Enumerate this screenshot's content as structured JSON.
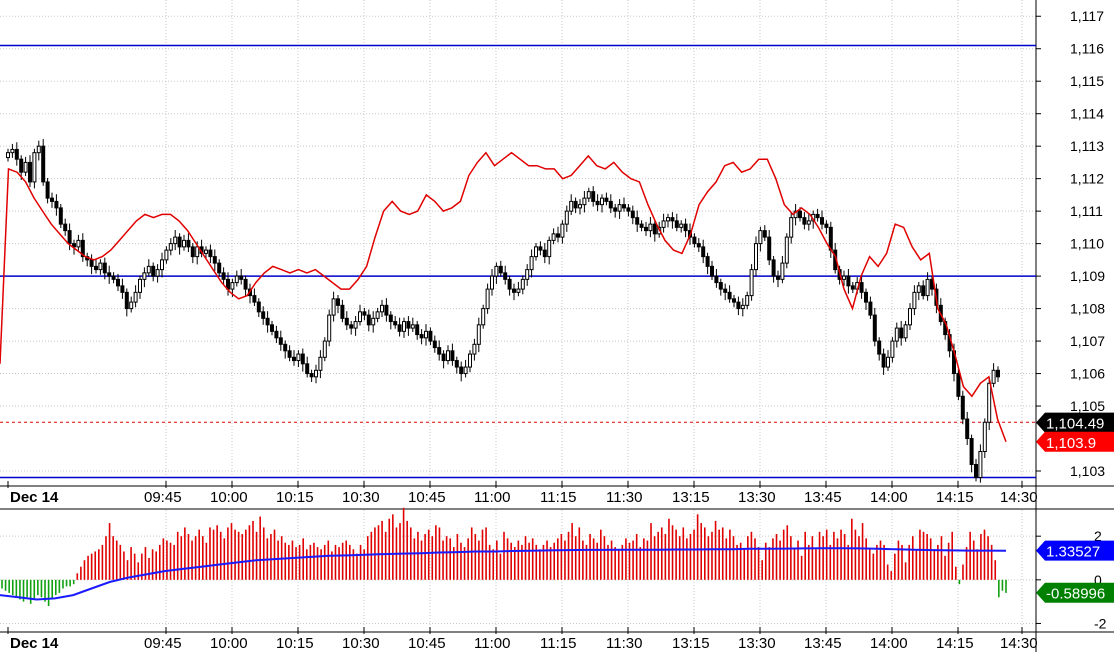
{
  "chart_data": [
    {
      "type": "candlestick",
      "title": "",
      "x_labels": {
        "date": "Dec 14",
        "times": [
          "09:45",
          "10:00",
          "10:15",
          "10:30",
          "10:45",
          "11:00",
          "11:15",
          "11:30",
          "13:15",
          "13:30",
          "13:45",
          "14:00",
          "14:15",
          "14:30"
        ]
      },
      "y_ticks": [
        "1,117",
        "1,116",
        "1,115",
        "1,114",
        "1,113",
        "1,112",
        "1,111",
        "1,110",
        "1,109",
        "1,108",
        "1,107",
        "1,106",
        "1,105",
        "1,103"
      ],
      "ylim": [
        1102.6,
        1117.5
      ],
      "horizontal_lines": [
        1116.1,
        1109.0,
        1102.8
      ],
      "last_price_line": 1104.5,
      "price_badges": [
        {
          "label": "1,104.49",
          "value": 1104.49,
          "color": "#000000"
        },
        {
          "label": "1,103.9",
          "value": 1103.9,
          "color": "#ff0000"
        }
      ],
      "series": [
        {
          "type": "ohlc-close",
          "close": [
            1112.8,
            1112.9,
            1112.6,
            1112.2,
            1112.5,
            1111.9,
            1112.8,
            1113.0,
            1111.9,
            1111.4,
            1111.3,
            1111.1,
            1110.6,
            1110.4,
            1110.0,
            1109.9,
            1110.1,
            1109.6,
            1109.5,
            1109.3,
            1109.2,
            1109.4,
            1109.1,
            1109.0,
            1108.9,
            1108.7,
            1108.5,
            1108.0,
            1108.2,
            1108.5,
            1108.9,
            1109.1,
            1109.3,
            1109.0,
            1109.2,
            1109.5,
            1109.8,
            1110.0,
            1110.2,
            1109.9,
            1110.1,
            1109.9,
            1109.6,
            1109.9,
            1109.7,
            1109.8,
            1109.6,
            1109.4,
            1109.1,
            1108.9,
            1108.6,
            1108.8,
            1109.0,
            1108.9,
            1108.6,
            1108.4,
            1108.2,
            1107.9,
            1107.7,
            1107.5,
            1107.3,
            1107.1,
            1106.9,
            1106.7,
            1106.5,
            1106.4,
            1106.6,
            1106.3,
            1106.0,
            1105.9,
            1106.1,
            1106.5,
            1107.0,
            1107.8,
            1108.3,
            1108.1,
            1107.7,
            1107.5,
            1107.4,
            1107.6,
            1107.9,
            1107.8,
            1107.5,
            1107.7,
            1107.9,
            1108.1,
            1107.8,
            1107.6,
            1107.5,
            1107.3,
            1107.6,
            1107.4,
            1107.5,
            1107.2,
            1107.1,
            1107.3,
            1107.0,
            1106.8,
            1106.6,
            1106.4,
            1106.7,
            1106.4,
            1106.2,
            1106.0,
            1106.2,
            1106.6,
            1106.9,
            1107.5,
            1108.0,
            1108.6,
            1109.0,
            1109.3,
            1109.1,
            1108.9,
            1108.6,
            1108.5,
            1108.6,
            1108.9,
            1109.2,
            1109.6,
            1109.9,
            1109.8,
            1109.6,
            1110.1,
            1110.3,
            1110.2,
            1110.6,
            1111.0,
            1111.3,
            1111.1,
            1111.2,
            1111.4,
            1111.6,
            1111.3,
            1111.2,
            1111.4,
            1111.3,
            1111.1,
            1111.0,
            1111.2,
            1111.1,
            1111.0,
            1110.8,
            1110.6,
            1110.5,
            1110.4,
            1110.6,
            1110.3,
            1110.5,
            1110.7,
            1110.8,
            1110.7,
            1110.5,
            1110.6,
            1110.4,
            1110.2,
            1110.0,
            1109.9,
            1109.6,
            1109.3,
            1109.0,
            1108.8,
            1108.6,
            1108.5,
            1108.3,
            1108.2,
            1108.0,
            1108.1,
            1108.4,
            1109.2,
            1110.0,
            1110.4,
            1110.2,
            1109.5,
            1109.0,
            1108.9,
            1109.4,
            1110.2,
            1110.8,
            1111.0,
            1110.8,
            1110.6,
            1110.7,
            1110.9,
            1110.8,
            1110.6,
            1110.5,
            1109.8,
            1109.2,
            1108.9,
            1109.0,
            1108.7,
            1108.6,
            1108.8,
            1108.5,
            1108.2,
            1107.8,
            1107.0,
            1106.6,
            1106.2,
            1106.5,
            1107.0,
            1107.4,
            1107.1,
            1107.5,
            1108.0,
            1108.5,
            1108.7,
            1108.4,
            1108.9,
            1108.6,
            1108.1,
            1107.6,
            1107.2,
            1106.7,
            1106.0,
            1105.3,
            1104.6,
            1104.0,
            1103.2,
            1102.8,
            1103.6,
            1104.5,
            1105.7,
            1106.1,
            1105.9
          ],
          "color_up": "#ffffff",
          "color_down": "#000000"
        },
        {
          "type": "line",
          "color": "#e00000",
          "values": [
            1106.3,
            1112.3,
            1112.2,
            1111.9,
            1111.4,
            1111.0,
            1110.6,
            1110.3,
            1110.0,
            1109.8,
            1109.6,
            1109.5,
            1109.6,
            1109.8,
            1110.1,
            1110.4,
            1110.7,
            1110.9,
            1110.8,
            1110.9,
            1110.9,
            1110.7,
            1110.4,
            1110.0,
            1109.6,
            1109.2,
            1108.8,
            1108.5,
            1108.3,
            1108.4,
            1108.8,
            1109.1,
            1109.3,
            1109.2,
            1109.1,
            1109.2,
            1109.1,
            1109.2,
            1109.0,
            1108.8,
            1108.6,
            1108.6,
            1108.9,
            1109.3,
            1110.2,
            1111.0,
            1111.3,
            1111.0,
            1110.9,
            1111.0,
            1111.5,
            1111.3,
            1111.0,
            1111.1,
            1111.3,
            1112.1,
            1112.5,
            1112.8,
            1112.4,
            1112.6,
            1112.8,
            1112.6,
            1112.4,
            1112.4,
            1112.3,
            1112.3,
            1112.0,
            1112.1,
            1112.4,
            1112.7,
            1112.4,
            1112.3,
            1112.5,
            1112.2,
            1112.0,
            1111.9,
            1111.2,
            1110.6,
            1110.1,
            1109.8,
            1109.7,
            1110.3,
            1111.2,
            1111.6,
            1111.9,
            1112.4,
            1112.5,
            1112.2,
            1112.3,
            1112.6,
            1112.6,
            1112.0,
            1111.2,
            1110.9,
            1111.1,
            1110.9,
            1110.5,
            1110.0,
            1109.6,
            1108.6,
            1108.0,
            1109.0,
            1109.6,
            1109.3,
            1109.7,
            1110.6,
            1110.5,
            1109.9,
            1109.5,
            1109.7,
            1108.0,
            1107.5,
            1106.6,
            1105.6,
            1105.3,
            1105.7,
            1105.9,
            1104.6,
            1103.9
          ],
          "x_count": 119
        }
      ]
    },
    {
      "type": "bar",
      "title": "",
      "y_ticks": [
        "2",
        "0",
        "-2"
      ],
      "ylim": [
        -2.3,
        3.2
      ],
      "value_badges": [
        {
          "label": "1.33527",
          "value": 1.33527,
          "color": "#0000ff"
        },
        {
          "label": "-0.58996",
          "value": -0.58996,
          "color": "#008000"
        }
      ],
      "x_labels": {
        "date": "Dec 14",
        "times": [
          "09:45",
          "10:00",
          "10:15",
          "10:30",
          "10:45",
          "11:00",
          "11:15",
          "11:30",
          "13:15",
          "13:30",
          "13:45",
          "14:00",
          "14:15",
          "14:30"
        ]
      },
      "series": [
        {
          "name": "",
          "type": "bar",
          "values": [
            -0.4,
            -0.5,
            -0.6,
            -0.7,
            -0.8,
            -0.9,
            -1.0,
            -0.8,
            -1.1,
            -0.9,
            -0.7,
            -0.8,
            -1.0,
            -1.2,
            -0.9,
            -0.7,
            -0.6,
            -0.4,
            -0.3,
            -0.3,
            -0.2,
            0.3,
            0.6,
            0.9,
            1.1,
            1.2,
            1.3,
            1.4,
            1.6,
            2.0,
            2.6,
            2.0,
            1.8,
            1.6,
            1.3,
            0.9,
            1.5,
            1.2,
            0.8,
            1.2,
            1.5,
            1.0,
            1.4,
            1.3,
            1.6,
            1.9,
            1.8,
            1.7,
            1.6,
            2.2,
            2.0,
            2.4,
            2.1,
            1.8,
            2.0,
            2.3,
            2.0,
            1.7,
            2.4,
            2.3,
            2.5,
            2.2,
            1.9,
            2.4,
            2.6,
            2.3,
            2.2,
            2.1,
            2.3,
            2.5,
            2.7,
            2.2,
            2.9,
            2.4,
            1.9,
            2.1,
            2.3,
            1.8,
            2.0,
            1.7,
            1.6,
            1.8,
            1.5,
            1.6,
            1.9,
            1.4,
            1.6,
            1.7,
            1.5,
            1.4,
            1.6,
            1.8,
            1.3,
            1.6,
            1.5,
            1.7,
            1.8,
            1.6,
            1.4,
            1.2,
            1.6,
            1.4,
            2.0,
            2.2,
            2.4,
            2.5,
            2.7,
            2.2,
            2.8,
            3.0,
            2.4,
            2.6,
            3.3,
            2.7,
            2.4,
            1.9,
            2.2,
            1.8,
            2.1,
            2.3,
            2.0,
            2.5,
            2.4,
            1.8,
            2.0,
            1.9,
            1.5,
            2.1,
            1.7,
            1.5,
            1.9,
            2.4,
            2.1,
            1.8,
            2.3,
            2.4,
            1.6,
            1.4,
            1.8,
            1.2,
            2.2,
            1.9,
            1.7,
            1.5,
            1.8,
            1.6,
            2.0,
            1.7,
            1.9,
            1.6,
            1.4,
            1.6,
            1.8,
            1.5,
            1.7,
            1.9,
            2.1,
            1.8,
            2.2,
            2.6,
            2.0,
            2.4,
            1.8,
            1.6,
            2.1,
            1.9,
            1.7,
            2.3,
            2.0,
            1.6,
            1.8,
            1.5,
            1.4,
            1.6,
            1.9,
            1.7,
            1.8,
            2.1,
            1.5,
            1.9,
            1.8,
            2.6,
            2.0,
            2.2,
            2.4,
            2.1,
            2.8,
            2.5,
            2.3,
            2.0,
            2.4,
            1.9,
            2.1,
            2.3,
            3.0,
            2.6,
            2.4,
            2.0,
            2.2,
            2.7,
            2.3,
            2.4,
            1.9,
            2.3,
            2.0,
            1.6,
            1.7,
            1.4,
            2.0,
            2.2,
            1.9,
            1.5,
            0.9,
            1.7,
            1.5,
            1.9,
            2.1,
            1.8,
            2.3,
            2.5,
            2.0,
            1.4,
            1.8,
            1.1,
            2.2,
            1.6,
            2.0,
            1.4,
            2.2,
            2.0,
            2.3,
            1.6,
            2.2,
            1.9,
            2.3,
            2.1,
            1.6,
            2.8,
            2.3,
            2.0,
            2.6,
            1.9,
            1.4,
            1.2,
            1.6,
            1.8,
            1.6,
            0.7,
            0.4,
            1.2,
            1.8,
            1.6,
            0.8,
            1.6,
            2.0,
            1.4,
            2.3,
            2.2,
            2.1,
            1.9,
            1.4,
            1.6,
            2.0,
            1.1,
            1.7,
            2.2,
            0.6,
            -0.2,
            0.7,
            1.5,
            2.2,
            1.8,
            1.4,
            2.1,
            2.3,
            2.0,
            1.6,
            0.9,
            -0.8,
            -0.5,
            -0.6
          ]
        },
        {
          "name": "",
          "type": "line",
          "color": "#1a1aff",
          "values": [
            -0.7,
            -0.8,
            -0.9,
            -0.85,
            -0.7,
            -0.4,
            -0.1,
            0.1,
            0.25,
            0.4,
            0.5,
            0.6,
            0.7,
            0.8,
            0.9,
            0.95,
            1.0,
            1.05,
            1.1,
            1.12,
            1.15,
            1.18,
            1.2,
            1.22,
            1.25,
            1.27,
            1.3,
            1.3,
            1.32,
            1.33,
            1.35,
            1.36,
            1.37,
            1.37,
            1.38,
            1.38,
            1.38,
            1.39,
            1.39,
            1.4,
            1.4,
            1.42,
            1.42,
            1.43,
            1.44,
            1.45,
            1.45,
            1.44,
            1.42,
            1.4,
            1.38,
            1.36,
            1.35,
            1.34,
            1.34,
            1.335
          ]
        }
      ]
    }
  ]
}
